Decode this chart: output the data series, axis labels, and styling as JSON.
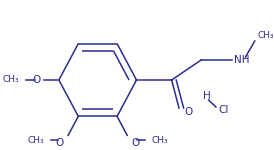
{
  "background_color": "#ffffff",
  "line_color": "#2b2b90",
  "text_color": "#2b2b90",
  "figsize": [
    2.74,
    1.5
  ],
  "dpi": 100,
  "xlim": [
    0.0,
    274.0
  ],
  "ylim": [
    0.0,
    150.0
  ]
}
